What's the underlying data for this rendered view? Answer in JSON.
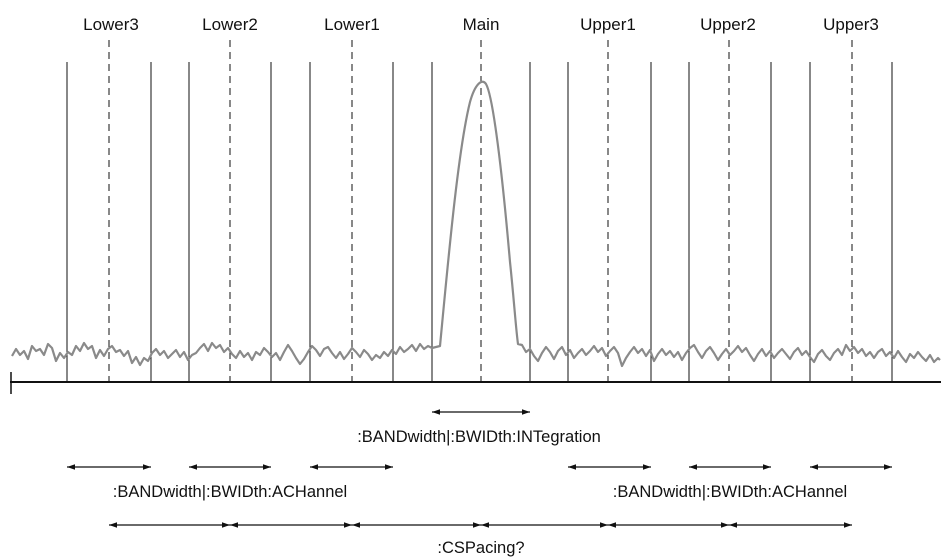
{
  "channels": [
    {
      "id": "lower3",
      "label": "Lower3"
    },
    {
      "id": "lower2",
      "label": "Lower2"
    },
    {
      "id": "lower1",
      "label": "Lower1"
    },
    {
      "id": "main",
      "label": "Main"
    },
    {
      "id": "upper1",
      "label": "Upper1"
    },
    {
      "id": "upper2",
      "label": "Upper2"
    },
    {
      "id": "upper3",
      "label": "Upper3"
    }
  ],
  "captions": {
    "integration": ":BANDwidth|:BWIDth:INTegration",
    "achannel_left": ":BANDwidth|:BWIDth:ACHannel",
    "achannel_right": ":BANDwidth|:BWIDth:ACHannel",
    "spacing": ":CSPacing?"
  },
  "colors": {
    "trace": "#8a8a8a",
    "lines": "#111111"
  }
}
